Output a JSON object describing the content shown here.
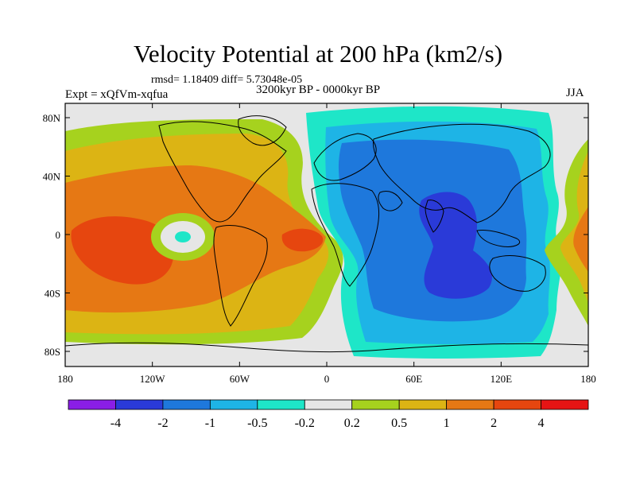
{
  "title": "Velocity Potential at 200 hPa (km2/s)",
  "stats": "rmsd= 1.18409 diff= 5.73048e-05",
  "experiment": "Expt = xQfVm-xqfua",
  "period": "3200kyr BP - 0000kyr BP",
  "season": "JJA",
  "y_ticks": [
    "80N",
    "40N",
    "0",
    "40S",
    "80S"
  ],
  "x_ticks": [
    "180",
    "120W",
    "60W",
    "0",
    "60E",
    "120E",
    "180"
  ],
  "colorbar": {
    "labels": [
      "-4",
      "-2",
      "-1",
      "-0.5",
      "-0.2",
      "0.2",
      "0.5",
      "1",
      "2",
      "4"
    ],
    "colors": [
      "#8a1ee6",
      "#2a3ad8",
      "#1e78dc",
      "#1eb4e6",
      "#1ee6c8",
      "#e6e6e6",
      "#a6d21e",
      "#dcb414",
      "#e67814",
      "#e6460f",
      "#e61414"
    ]
  },
  "palette": {
    "level_n2": "#2a3ad8",
    "level_n1": "#1e78dc",
    "level_n05": "#1eb4e6",
    "level_n02": "#1ee6c8",
    "level_0": "#e6e6e6",
    "level_02": "#a6d21e",
    "level_05": "#dcb414",
    "level_1": "#e67814",
    "level_2": "#e6460f"
  }
}
